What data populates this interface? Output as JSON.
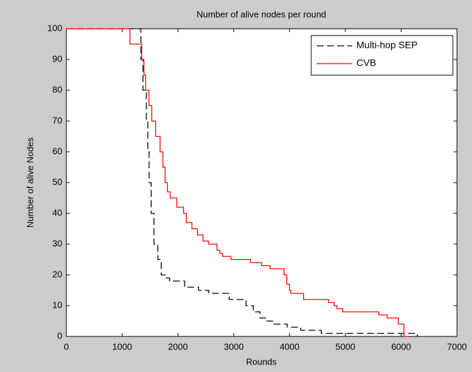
{
  "chart_data": {
    "type": "line",
    "title": "Number of alive nodes per round",
    "xlabel": "Rounds",
    "ylabel": "Number of alive Nodes",
    "xlim": [
      0,
      7000
    ],
    "xticks": [
      0,
      1000,
      2000,
      3000,
      4000,
      5000,
      6000,
      7000
    ],
    "ylim": [
      0,
      100
    ],
    "yticks": [
      0,
      10,
      20,
      30,
      40,
      50,
      60,
      70,
      80,
      90,
      100
    ],
    "legend": "upper right",
    "series": [
      {
        "name": "Multi-hop SEP",
        "color": "#000000",
        "dash": "dashed",
        "x": [
          0,
          1336,
          1373,
          1434,
          1460,
          1483,
          1520,
          1570,
          1640,
          1700,
          1790,
          1850,
          2120,
          2370,
          2550,
          2920,
          3220,
          3350,
          3470,
          3590,
          3710,
          3960,
          4200,
          4570,
          5060,
          6290
        ],
        "values": [
          100,
          90,
          80,
          70,
          60,
          50,
          40,
          30,
          25,
          20,
          19,
          18,
          16,
          15,
          14,
          12,
          10,
          8,
          6,
          5,
          4,
          3,
          2,
          1,
          1,
          0
        ]
      },
      {
        "name": "CVB",
        "color": "#ff0000",
        "dash": "solid",
        "x": [
          0,
          1140,
          1350,
          1390,
          1420,
          1480,
          1530,
          1600,
          1680,
          1730,
          1770,
          1810,
          1860,
          1980,
          2100,
          2150,
          2250,
          2350,
          2450,
          2550,
          2700,
          2750,
          2800,
          2950,
          3300,
          3500,
          3650,
          3900,
          3950,
          4000,
          4020,
          4250,
          4700,
          4800,
          4850,
          4950,
          5600,
          5750,
          5950,
          6050,
          6120
        ],
        "values": [
          100,
          95,
          90,
          85,
          80,
          75,
          70,
          65,
          60,
          55,
          50,
          47,
          45,
          42,
          40,
          37,
          35,
          33,
          31,
          30,
          28,
          27,
          26,
          25,
          24,
          23,
          22,
          20,
          17,
          15,
          14,
          12,
          11,
          10,
          9,
          8,
          7,
          6,
          4,
          0,
          0
        ]
      }
    ]
  }
}
